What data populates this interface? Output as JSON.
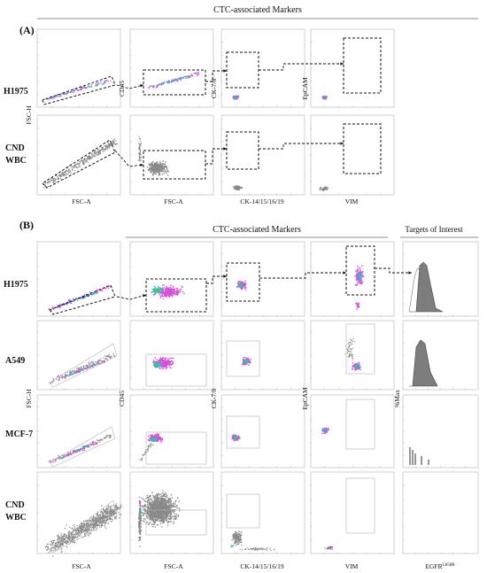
{
  "panel_a": {
    "label": "(A)",
    "header": "CTC-associated Markers",
    "rows": [
      "H1975",
      "CND\nWBC"
    ],
    "y_axes": [
      "FSC-H",
      "CD45",
      "CK-7/8",
      "EpCAM"
    ],
    "x_axes": [
      "FSC-A",
      "FSC-A",
      "CK-14/15/16/19",
      "VIM"
    ]
  },
  "panel_b": {
    "label": "(B)",
    "header": "CTC-associated Markers",
    "header_right": "Targets of Interest",
    "rows": [
      "H1975",
      "A549",
      "MCF-7",
      "CND\nWBC"
    ],
    "y_axes": [
      "FSC-H",
      "CD45",
      "CK-7/8",
      "EpCAM",
      "%Max"
    ],
    "x_axes": [
      "FSC-A",
      "FSC-A",
      "CK-14/15/16/19",
      "VIM"
    ],
    "x_axis_last": "EGFR",
    "x_axis_last_sup": "L858R"
  },
  "colors": {
    "gray": "#8a8a8a",
    "magenta": "#d94fd9",
    "cyan": "#2fb7c8",
    "green": "#3ecf5a",
    "blue": "#3a4fd0"
  }
}
